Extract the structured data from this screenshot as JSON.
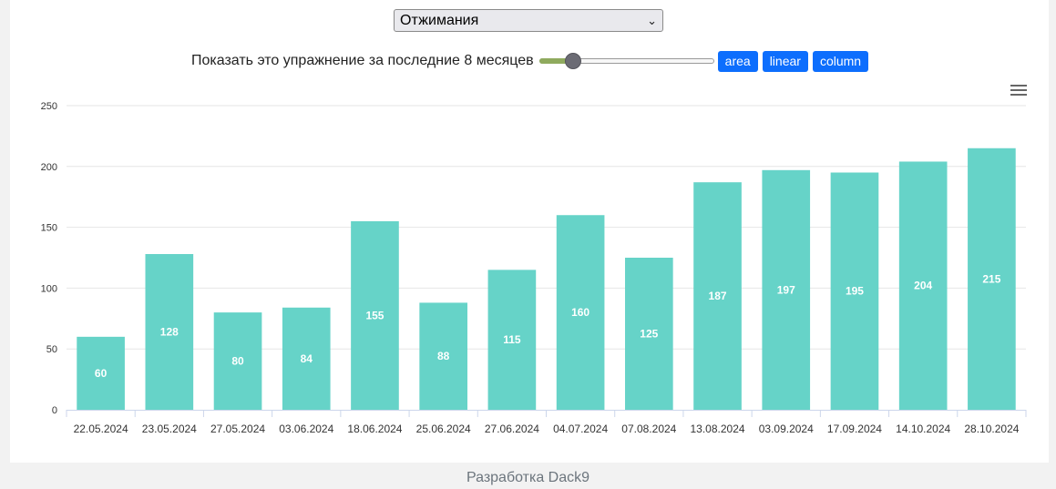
{
  "exercise_select": {
    "selected": "Отжимания"
  },
  "controls": {
    "label": "Показать это упражнение за последние 8 месяцев",
    "slider_value": 8,
    "slider_fraction": 0.16,
    "buttons": [
      "area",
      "linear",
      "column"
    ]
  },
  "colors": {
    "bar": "#66d3c8",
    "button": "#0d6efd",
    "slider_fill": "#8faa5e"
  },
  "chart_data": {
    "type": "bar",
    "categories": [
      "22.05.2024",
      "23.05.2024",
      "27.05.2024",
      "03.06.2024",
      "18.06.2024",
      "25.06.2024",
      "27.06.2024",
      "04.07.2024",
      "07.08.2024",
      "13.08.2024",
      "03.09.2024",
      "17.09.2024",
      "14.10.2024",
      "28.10.2024"
    ],
    "values": [
      60,
      128,
      80,
      84,
      155,
      88,
      115,
      160,
      125,
      187,
      197,
      195,
      204,
      215
    ],
    "data_labels": [
      "60",
      "128",
      "80",
      "84",
      "155",
      "88",
      "115",
      "160",
      "125",
      "187",
      "197",
      "195",
      "204",
      "215"
    ],
    "y_ticks": [
      0,
      50,
      100,
      150,
      200,
      250
    ],
    "ylim": [
      0,
      250
    ],
    "grid": true,
    "legend": "none"
  },
  "footer": {
    "text": "Разработка Dack9"
  }
}
